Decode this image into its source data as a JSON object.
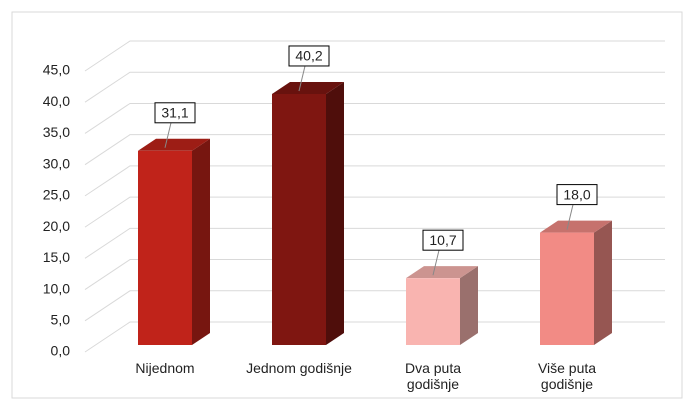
{
  "chart_data": {
    "type": "bar3d",
    "categories": [
      "Nijednom",
      "Jednom godišnje",
      "Dva puta godišnje",
      "Više puta godišnje"
    ],
    "values": [
      31.1,
      40.2,
      10.7,
      18.0
    ],
    "value_labels": [
      "31,1",
      "40,2",
      "10,7",
      "18,0"
    ],
    "colors": [
      "#c0231a",
      "#7f1611",
      "#f9b4b0",
      "#f28b85"
    ],
    "ylim": [
      0,
      45
    ],
    "yticks": [
      {
        "value": 0,
        "label": "0,0"
      },
      {
        "value": 5,
        "label": "5,0"
      },
      {
        "value": 10,
        "label": "10,0"
      },
      {
        "value": 15,
        "label": "15,0"
      },
      {
        "value": 20,
        "label": "20,0"
      },
      {
        "value": 25,
        "label": "25,0"
      },
      {
        "value": 30,
        "label": "30,0"
      },
      {
        "value": 35,
        "label": "35,0"
      },
      {
        "value": 40,
        "label": "40,0"
      },
      {
        "value": 45,
        "label": "45,0"
      }
    ],
    "grid": true
  }
}
